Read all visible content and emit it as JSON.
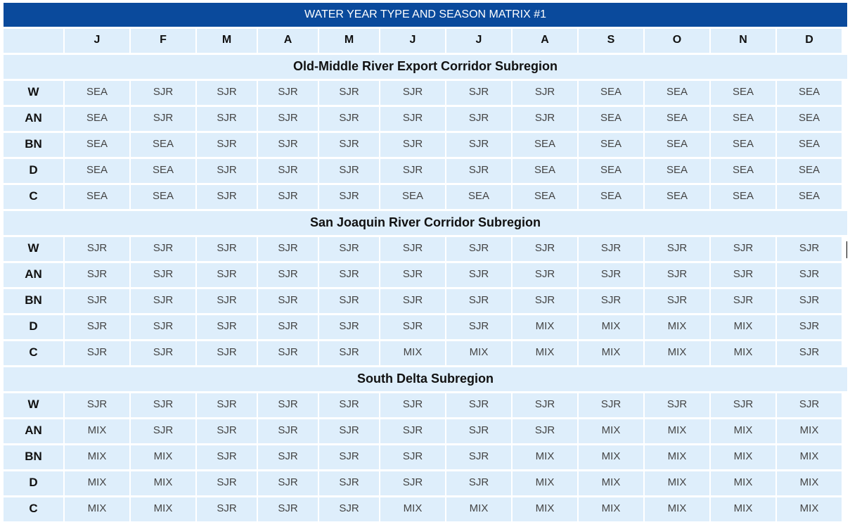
{
  "title": "WATER YEAR TYPE AND SEASON MATRIX #1",
  "months": [
    "J",
    "F",
    "M",
    "A",
    "M",
    "J",
    "J",
    "A",
    "S",
    "O",
    "N",
    "D"
  ],
  "sections": [
    {
      "name": "Old-Middle River Export Corridor Subregion",
      "rows": [
        {
          "label": "W",
          "values": [
            "SEA",
            "SJR",
            "SJR",
            "SJR",
            "SJR",
            "SJR",
            "SJR",
            "SJR",
            "SEA",
            "SEA",
            "SEA",
            "SEA"
          ]
        },
        {
          "label": "AN",
          "values": [
            "SEA",
            "SJR",
            "SJR",
            "SJR",
            "SJR",
            "SJR",
            "SJR",
            "SJR",
            "SEA",
            "SEA",
            "SEA",
            "SEA"
          ]
        },
        {
          "label": "BN",
          "values": [
            "SEA",
            "SEA",
            "SJR",
            "SJR",
            "SJR",
            "SJR",
            "SJR",
            "SEA",
            "SEA",
            "SEA",
            "SEA",
            "SEA"
          ]
        },
        {
          "label": "D",
          "values": [
            "SEA",
            "SEA",
            "SJR",
            "SJR",
            "SJR",
            "SJR",
            "SJR",
            "SEA",
            "SEA",
            "SEA",
            "SEA",
            "SEA"
          ]
        },
        {
          "label": "C",
          "values": [
            "SEA",
            "SEA",
            "SJR",
            "SJR",
            "SJR",
            "SEA",
            "SEA",
            "SEA",
            "SEA",
            "SEA",
            "SEA",
            "SEA"
          ]
        }
      ]
    },
    {
      "name": "San Joaquin River Corridor Subregion",
      "rows": [
        {
          "label": "W",
          "values": [
            "SJR",
            "SJR",
            "SJR",
            "SJR",
            "SJR",
            "SJR",
            "SJR",
            "SJR",
            "SJR",
            "SJR",
            "SJR",
            "SJR"
          ]
        },
        {
          "label": "AN",
          "values": [
            "SJR",
            "SJR",
            "SJR",
            "SJR",
            "SJR",
            "SJR",
            "SJR",
            "SJR",
            "SJR",
            "SJR",
            "SJR",
            "SJR"
          ]
        },
        {
          "label": "BN",
          "values": [
            "SJR",
            "SJR",
            "SJR",
            "SJR",
            "SJR",
            "SJR",
            "SJR",
            "SJR",
            "SJR",
            "SJR",
            "SJR",
            "SJR"
          ]
        },
        {
          "label": "D",
          "values": [
            "SJR",
            "SJR",
            "SJR",
            "SJR",
            "SJR",
            "SJR",
            "SJR",
            "MIX",
            "MIX",
            "MIX",
            "MIX",
            "SJR"
          ]
        },
        {
          "label": "C",
          "values": [
            "SJR",
            "SJR",
            "SJR",
            "SJR",
            "SJR",
            "MIX",
            "MIX",
            "MIX",
            "MIX",
            "MIX",
            "MIX",
            "SJR"
          ]
        }
      ]
    },
    {
      "name": "South Delta Subregion",
      "rows": [
        {
          "label": "W",
          "values": [
            "SJR",
            "SJR",
            "SJR",
            "SJR",
            "SJR",
            "SJR",
            "SJR",
            "SJR",
            "SJR",
            "SJR",
            "SJR",
            "SJR"
          ]
        },
        {
          "label": "AN",
          "values": [
            "MIX",
            "SJR",
            "SJR",
            "SJR",
            "SJR",
            "SJR",
            "SJR",
            "SJR",
            "MIX",
            "MIX",
            "MIX",
            "MIX"
          ]
        },
        {
          "label": "BN",
          "values": [
            "MIX",
            "MIX",
            "SJR",
            "SJR",
            "SJR",
            "SJR",
            "SJR",
            "MIX",
            "MIX",
            "MIX",
            "MIX",
            "MIX"
          ]
        },
        {
          "label": "D",
          "values": [
            "MIX",
            "MIX",
            "SJR",
            "SJR",
            "SJR",
            "SJR",
            "SJR",
            "MIX",
            "MIX",
            "MIX",
            "MIX",
            "MIX"
          ]
        },
        {
          "label": "C",
          "values": [
            "MIX",
            "MIX",
            "SJR",
            "SJR",
            "SJR",
            "MIX",
            "MIX",
            "MIX",
            "MIX",
            "MIX",
            "MIX",
            "MIX"
          ]
        }
      ]
    }
  ],
  "colors": {
    "title_bg": "#0a4a9c",
    "cell_bg": "#deeefb"
  }
}
